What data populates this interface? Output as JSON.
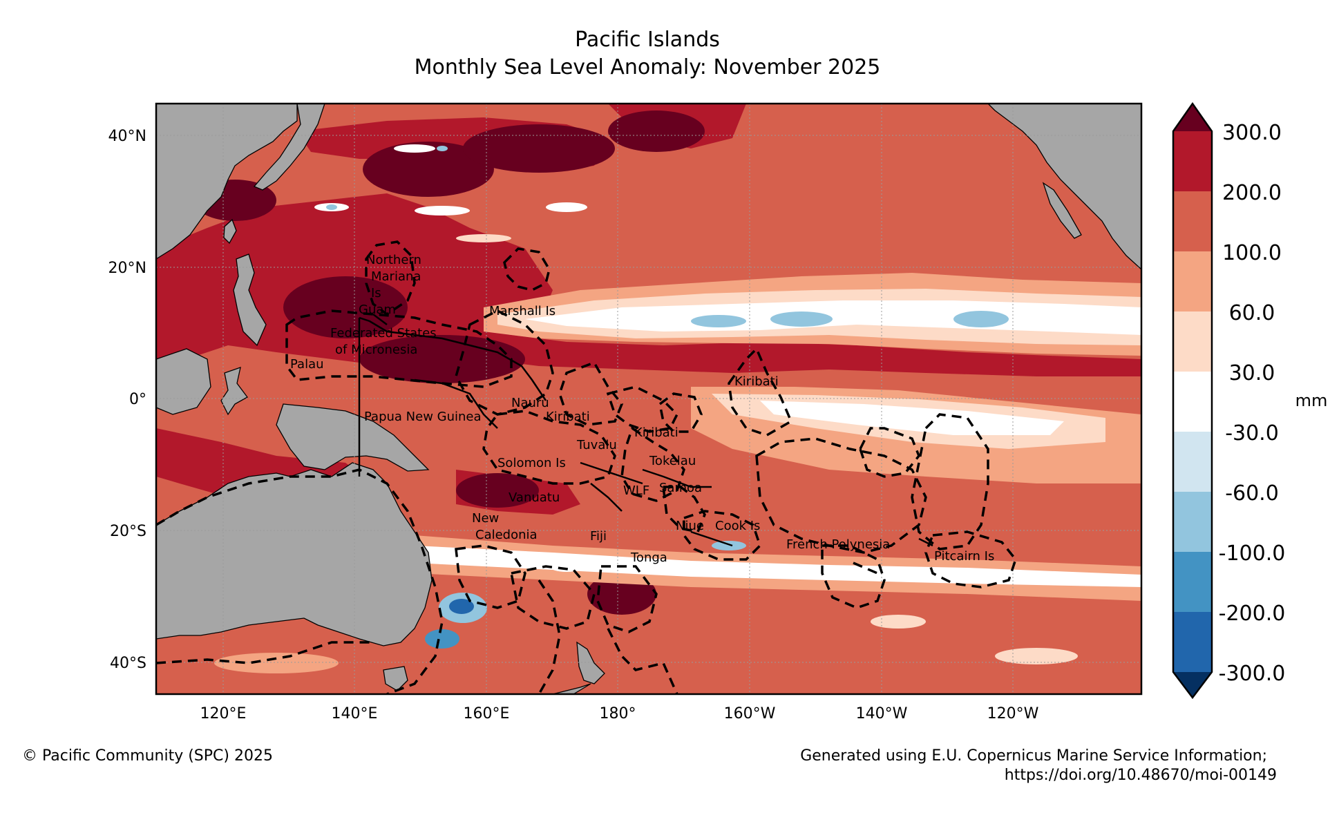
{
  "title": "Pacific Islands",
  "subtitle": "Monthly Sea Level Anomaly: November 2025",
  "map": {
    "lat_labels": [
      "40°N",
      "20°N",
      "0°",
      "20°S",
      "40°S"
    ],
    "lon_labels": [
      "120°E",
      "140°E",
      "160°E",
      "180°",
      "160°W",
      "140°W",
      "120°W"
    ],
    "regions": [
      "Northern",
      "Mariana",
      "Is",
      "Guam",
      "Federated States",
      "of Micronesia",
      "Palau",
      "Marshall Is",
      "Kiribati",
      "Nauru",
      "Kiribati",
      "Papua New Guinea",
      "Kiribati",
      "Tuvalu",
      "Tokelau",
      "Solomon Is",
      "Vanuatu",
      "WLF",
      "Samoa",
      "New",
      "Caledonia",
      "Fiji",
      "Niue",
      "Cook Is",
      "Tonga",
      "French Polynesia",
      "Pitcairn Is"
    ],
    "colors": {
      "land": "#a6a6a6",
      "ocean_base": "#d6604d"
    }
  },
  "colorbar": {
    "unit": "mm",
    "ticks": [
      "300.0",
      "200.0",
      "100.0",
      "60.0",
      "30.0",
      "-30.0",
      "-60.0",
      "-100.0",
      "-200.0",
      "-300.0"
    ],
    "colors": [
      "#67001f",
      "#b2182b",
      "#d6604d",
      "#f4a582",
      "#fddbc7",
      "#ffffff",
      "#d1e5f0",
      "#92c5de",
      "#4393c3",
      "#2166ac",
      "#053061"
    ]
  },
  "footer": {
    "copyright": "© Pacific Community (SPC) 2025",
    "credit_line1": "Generated using E.U. Copernicus Marine Service Information;",
    "credit_line2": "https://doi.org/10.48670/moi-00149"
  }
}
